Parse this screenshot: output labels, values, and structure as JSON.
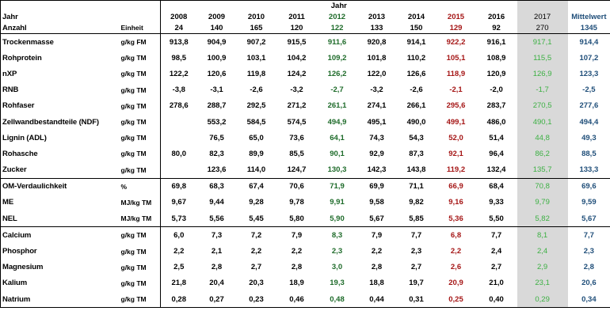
{
  "header": {
    "jahr_group": "Jahr",
    "row1_label": "Jahr",
    "row2_label": "Anzahl",
    "unit_label": "Einheit",
    "years": [
      "2008",
      "2009",
      "2010",
      "2011",
      "2012",
      "2013",
      "2014",
      "2015",
      "2016",
      "2017",
      "Mittelwert"
    ],
    "counts": [
      "24",
      "140",
      "165",
      "120",
      "122",
      "133",
      "150",
      "129",
      "92",
      "270",
      "1345"
    ]
  },
  "colors": {
    "y2012": "#1e6b2a",
    "y2015": "#a51616",
    "y2017": "#3cb043",
    "mittelwert": "#1f4e79",
    "highlight_bg": "#d9d9d9"
  },
  "rows": [
    {
      "label": "Trockenmasse",
      "unit": "g/kg FM",
      "values": [
        "913,8",
        "904,9",
        "907,2",
        "915,5",
        "911,6",
        "920,8",
        "914,1",
        "922,2",
        "916,1",
        "917,1",
        "914,4"
      ]
    },
    {
      "label": "Rohprotein",
      "unit": "g/kg TM",
      "values": [
        "98,5",
        "100,9",
        "103,1",
        "104,2",
        "109,2",
        "101,8",
        "110,2",
        "105,1",
        "108,9",
        "115,5",
        "107,2"
      ]
    },
    {
      "label": "nXP",
      "unit": "g/kg TM",
      "values": [
        "122,2",
        "120,6",
        "119,8",
        "124,2",
        "126,2",
        "122,0",
        "126,6",
        "118,9",
        "120,9",
        "126,9",
        "123,3"
      ]
    },
    {
      "label": "RNB",
      "unit": "g/kg TM",
      "values": [
        "-3,8",
        "-3,1",
        "-2,6",
        "-3,2",
        "-2,7",
        "-3,2",
        "-2,6",
        "-2,1",
        "-2,0",
        "-1,7",
        "-2,5"
      ]
    },
    {
      "label": "Rohfaser",
      "unit": "g/kg TM",
      "values": [
        "278,6",
        "288,7",
        "292,5",
        "271,2",
        "261,1",
        "274,1",
        "266,1",
        "295,6",
        "283,7",
        "270,5",
        "277,6"
      ]
    },
    {
      "label": "Zellwandbestandteile (NDF)",
      "unit": "g/kg TM",
      "values": [
        "",
        "553,2",
        "584,5",
        "574,5",
        "494,9",
        "495,1",
        "490,0",
        "499,1",
        "486,0",
        "490,1",
        "494,4"
      ]
    },
    {
      "label": "Lignin (ADL)",
      "unit": "g/kg TM",
      "values": [
        "",
        "76,5",
        "65,0",
        "73,6",
        "64,1",
        "74,3",
        "54,3",
        "52,0",
        "51,4",
        "44,8",
        "49,3"
      ]
    },
    {
      "label": "Rohasche",
      "unit": "g/kg TM",
      "values": [
        "80,0",
        "82,3",
        "89,9",
        "85,5",
        "90,1",
        "92,9",
        "87,3",
        "92,1",
        "96,4",
        "86,2",
        "88,5"
      ]
    },
    {
      "label": "Zucker",
      "unit": "g/kg TM",
      "values": [
        "",
        "123,6",
        "114,0",
        "124,7",
        "130,3",
        "142,3",
        "143,8",
        "119,2",
        "132,4",
        "135,7",
        "133,3"
      ]
    },
    {
      "label": "OM-Verdaulichkeit",
      "unit": "%",
      "values": [
        "69,8",
        "68,3",
        "67,4",
        "70,6",
        "71,9",
        "69,9",
        "71,1",
        "66,9",
        "68,4",
        "70,8",
        "69,6"
      ]
    },
    {
      "label": "ME",
      "unit": "MJ/kg TM",
      "values": [
        "9,67",
        "9,44",
        "9,28",
        "9,78",
        "9,91",
        "9,58",
        "9,82",
        "9,16",
        "9,33",
        "9,79",
        "9,59"
      ]
    },
    {
      "label": "NEL",
      "unit": "MJ/kg TM",
      "values": [
        "5,73",
        "5,56",
        "5,45",
        "5,80",
        "5,90",
        "5,67",
        "5,85",
        "5,36",
        "5,50",
        "5,82",
        "5,67"
      ]
    },
    {
      "label": "Calcium",
      "unit": "g/kg TM",
      "values": [
        "6,0",
        "7,3",
        "7,2",
        "7,9",
        "8,3",
        "7,9",
        "7,7",
        "6,8",
        "7,7",
        "8,1",
        "7,7"
      ]
    },
    {
      "label": "Phosphor",
      "unit": "g/kg TM",
      "values": [
        "2,2",
        "2,1",
        "2,2",
        "2,2",
        "2,3",
        "2,2",
        "2,3",
        "2,2",
        "2,4",
        "2,4",
        "2,3"
      ]
    },
    {
      "label": "Magnesium",
      "unit": "g/kg TM",
      "values": [
        "2,5",
        "2,8",
        "2,7",
        "2,8",
        "3,0",
        "2,8",
        "2,7",
        "2,6",
        "2,7",
        "2,9",
        "2,8"
      ]
    },
    {
      "label": "Kalium",
      "unit": "g/kg TM",
      "values": [
        "21,8",
        "20,4",
        "20,3",
        "18,9",
        "19,3",
        "18,8",
        "19,7",
        "20,9",
        "21,0",
        "23,1",
        "20,6"
      ]
    },
    {
      "label": "Natrium",
      "unit": "g/kg TM",
      "values": [
        "0,28",
        "0,27",
        "0,23",
        "0,46",
        "0,48",
        "0,44",
        "0,31",
        "0,25",
        "0,40",
        "0,29",
        "0,34"
      ]
    }
  ]
}
